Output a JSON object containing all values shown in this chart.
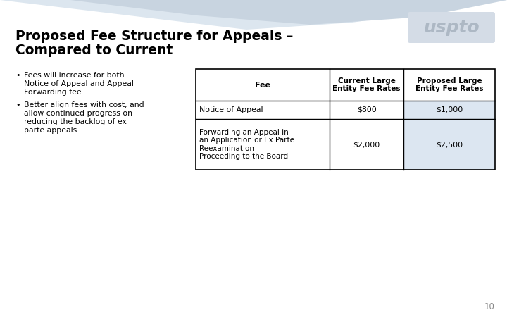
{
  "title_line1": "Proposed Fee Structure for Appeals –",
  "title_line2": "Compared to Current",
  "bullet1_line1": "Fees will increase for both",
  "bullet1_line2": "Notice of Appeal and Appeal",
  "bullet1_line3": "Forwarding fee.",
  "bullet2_line1": "Better align fees with cost, and",
  "bullet2_line2": "allow continued progress on",
  "bullet2_line3": "reducing the backlog of ex",
  "bullet2_line4": "parte appeals.",
  "table_header": [
    "Fee",
    "Current Large\nEntity Fee Rates",
    "Proposed Large\nEntity Fee Rates"
  ],
  "table_row1": [
    "Notice of Appeal",
    "$800",
    "$1,000"
  ],
  "table_row2": [
    "Forwarding an Appeal in\nan Application or Ex Parte\nReexamination\nProceeding to the Board",
    "$2,000",
    "$2,500"
  ],
  "header_bg": "#ffffff",
  "header_fg": "#000000",
  "proposed_col_bg": "#dce6f1",
  "page_number": "10",
  "bg_color": "#ffffff",
  "title_color": "#000000",
  "body_color": "#000000",
  "wave_color1": "#c8d4e0",
  "wave_color2": "#dce6ef",
  "table_border": "#000000",
  "logo_bg": "#d4dce6",
  "logo_fg": "#adb8c4"
}
